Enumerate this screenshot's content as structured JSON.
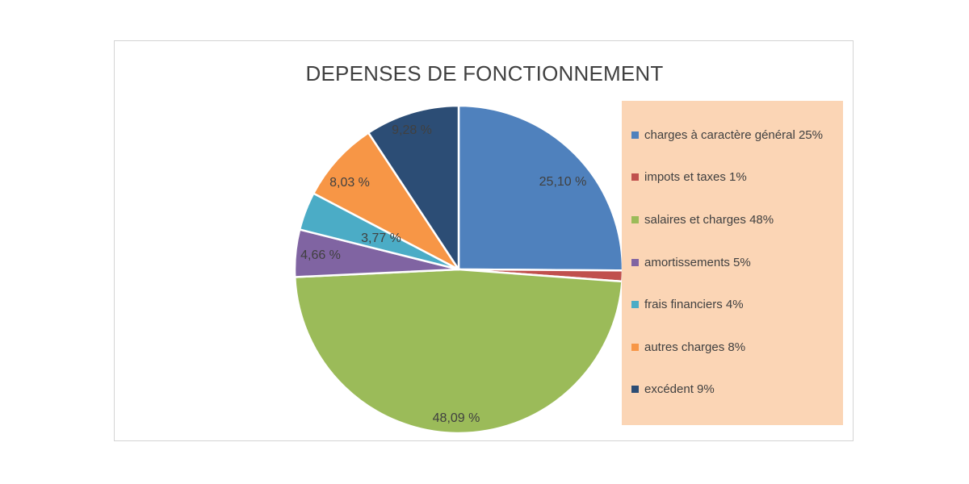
{
  "chart_data": {
    "type": "pie",
    "title": "DEPENSES DE FONCTIONNEMENT",
    "slices": [
      {
        "name": "charges à caractère général 25%",
        "value": 25.1,
        "label": "25,10 %",
        "color": "#4f81bd"
      },
      {
        "name": "impots et taxes 1%",
        "value": 1.07,
        "label": "",
        "color": "#c0504d"
      },
      {
        "name": "salaires et charges 48%",
        "value": 48.09,
        "label": "48,09 %",
        "color": "#9bbb59"
      },
      {
        "name": "amortissements 5%",
        "value": 4.66,
        "label": "4,66 %",
        "color": "#8064a2"
      },
      {
        "name": "frais financiers 4%",
        "value": 3.77,
        "label": "3,77 %",
        "color": "#4bacc6"
      },
      {
        "name": "autres charges 8%",
        "value": 8.03,
        "label": "8,03 %",
        "color": "#f79646"
      },
      {
        "name": "excédent 9%",
        "value": 9.28,
        "label": "9,28 %",
        "color": "#2c4d75"
      }
    ],
    "legend_position": "right",
    "legend_background": "#fbd5b5"
  }
}
